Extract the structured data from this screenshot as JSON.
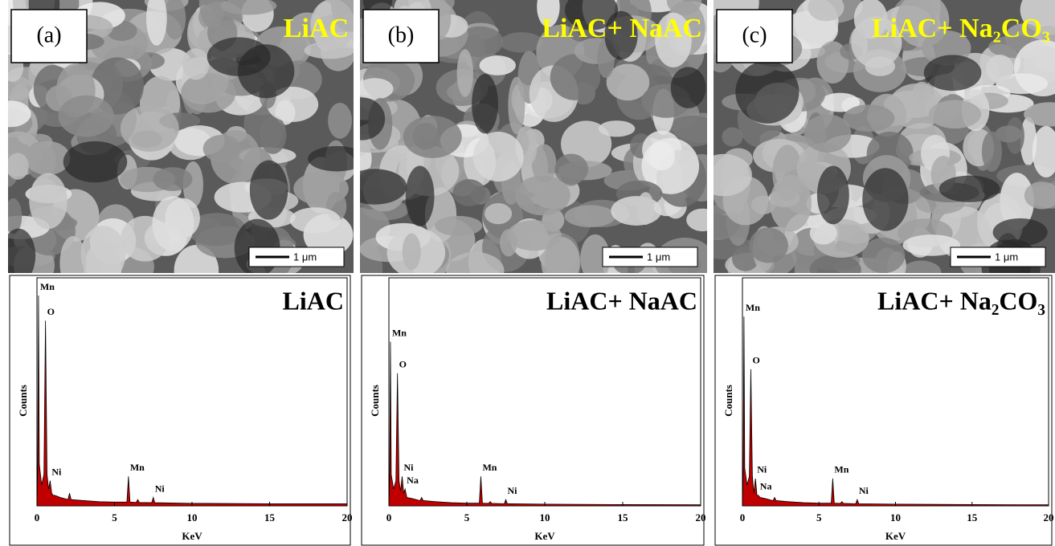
{
  "panels": [
    {
      "label": "(a)",
      "title": "LiAC",
      "scale": "1 μm"
    },
    {
      "label": "(b)",
      "title": "LiAC+ NaAC",
      "scale": "1 μm"
    },
    {
      "label": "(c)",
      "title": "LiAC+ Na₂CO₃",
      "scale": "1 μm"
    }
  ],
  "chart_data": [
    {
      "type": "area",
      "title": "LiAC",
      "x_label": "KeV",
      "y_label": "Counts",
      "color": "#c00000",
      "xlim": [
        0,
        20
      ],
      "xticks": [
        0,
        5,
        10,
        15,
        20
      ],
      "ylim": [
        0,
        100
      ],
      "x": [
        0,
        0.05,
        0.1,
        0.15,
        0.3,
        0.45,
        0.55,
        0.65,
        0.75,
        0.85,
        0.95,
        1.04,
        1.15,
        1.5,
        2.0,
        2.1,
        2.2,
        3,
        4,
        5,
        5.8,
        5.9,
        6.0,
        6.4,
        6.5,
        6.6,
        7.4,
        7.5,
        7.6,
        10,
        15,
        20
      ],
      "values": [
        0,
        20,
        100,
        20,
        10,
        15,
        88,
        15,
        8,
        12,
        6,
        5,
        5,
        4,
        3,
        6,
        3,
        2.5,
        2,
        1.8,
        1.8,
        14,
        1.8,
        1.6,
        3,
        1.6,
        1.5,
        4,
        1.5,
        1.2,
        1,
        1
      ],
      "annotations": [
        {
          "text": "Mn",
          "x": 0.1
        },
        {
          "text": "O",
          "x": 0.55
        },
        {
          "text": "Ni",
          "x": 0.85
        },
        {
          "text": "Mn",
          "x": 5.9
        },
        {
          "text": "Ni",
          "x": 7.5
        }
      ]
    },
    {
      "type": "area",
      "title": "LiAC+ NaAC",
      "x_label": "KeV",
      "y_label": "Counts",
      "color": "#c00000",
      "xlim": [
        0,
        20
      ],
      "xticks": [
        0,
        5,
        10,
        15,
        20
      ],
      "ylim": [
        0,
        100
      ],
      "x": [
        0,
        0.05,
        0.1,
        0.15,
        0.3,
        0.45,
        0.55,
        0.65,
        0.75,
        0.85,
        0.95,
        1.04,
        1.15,
        1.5,
        2.0,
        2.1,
        2.2,
        3,
        4,
        5,
        5.8,
        5.9,
        6.0,
        6.4,
        6.5,
        6.6,
        7.4,
        7.5,
        7.6,
        10,
        15,
        20
      ],
      "values": [
        0,
        15,
        78,
        15,
        8,
        12,
        63,
        12,
        7,
        14,
        6,
        8,
        4,
        3.5,
        2.5,
        4,
        2.5,
        2,
        1.5,
        1.3,
        1.3,
        14,
        1.3,
        1.2,
        2,
        1.2,
        1,
        3,
        1,
        0.8,
        0.6,
        0.5
      ],
      "annotations": [
        {
          "text": "Mn",
          "x": 0.1
        },
        {
          "text": "O",
          "x": 0.55
        },
        {
          "text": "Ni",
          "x": 0.85
        },
        {
          "text": "Na",
          "x": 1.04
        },
        {
          "text": "Mn",
          "x": 5.9
        },
        {
          "text": "Ni",
          "x": 7.5
        }
      ]
    },
    {
      "type": "area",
      "title": "LiAC+ Na₂CO₃",
      "x_label": "KeV",
      "y_label": "Counts",
      "color": "#c00000",
      "xlim": [
        0,
        20
      ],
      "xticks": [
        0,
        5,
        10,
        15,
        20
      ],
      "ylim": [
        0,
        100
      ],
      "x": [
        0,
        0.05,
        0.1,
        0.15,
        0.3,
        0.45,
        0.55,
        0.65,
        0.75,
        0.85,
        0.95,
        1.04,
        1.15,
        1.5,
        2.0,
        2.1,
        2.2,
        3,
        4,
        5,
        5.8,
        5.9,
        6.0,
        6.4,
        6.5,
        6.6,
        7.4,
        7.5,
        7.6,
        10,
        15,
        20
      ],
      "values": [
        0,
        18,
        90,
        18,
        10,
        14,
        65,
        14,
        6,
        13,
        5,
        5,
        4,
        3.5,
        2.5,
        4,
        2.5,
        2,
        1.5,
        1.3,
        1.3,
        13,
        1.3,
        1.2,
        2,
        1.2,
        1,
        3,
        1,
        0.8,
        0.6,
        0.5
      ],
      "annotations": [
        {
          "text": "Mn",
          "x": 0.1
        },
        {
          "text": "O",
          "x": 0.55
        },
        {
          "text": "Ni",
          "x": 0.85
        },
        {
          "text": "Na",
          "x": 1.04
        },
        {
          "text": "Mn",
          "x": 5.9
        },
        {
          "text": "Ni",
          "x": 7.5
        }
      ]
    }
  ]
}
